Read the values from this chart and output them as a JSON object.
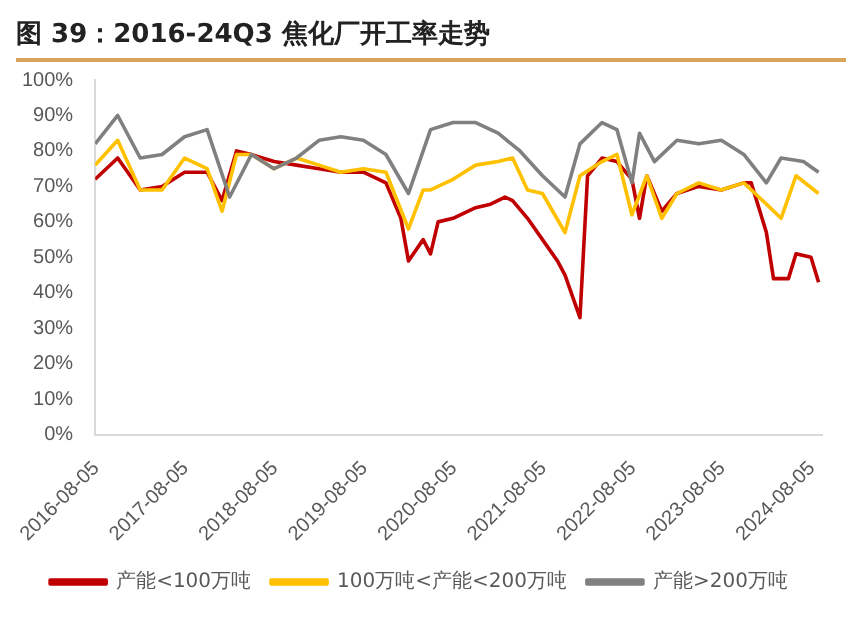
{
  "chart_data": {
    "type": "line",
    "title": "图 39：2016-24Q3 焦化厂开工率走势",
    "xlim": [
      "2016-08-01",
      "2024-09-15"
    ],
    "xticks": [
      "2016-08-05",
      "2017-08-05",
      "2018-08-05",
      "2019-08-05",
      "2020-08-05",
      "2021-08-05",
      "2022-08-05",
      "2023-08-05",
      "2024-08-05"
    ],
    "ylim": [
      0,
      100
    ],
    "yticks": [
      {
        "value": 0,
        "label": "0%"
      },
      {
        "value": 10,
        "label": "10%"
      },
      {
        "value": 20,
        "label": "20%"
      },
      {
        "value": 30,
        "label": "30%"
      },
      {
        "value": 40,
        "label": "40%"
      },
      {
        "value": 50,
        "label": "50%"
      },
      {
        "value": 60,
        "label": "60%"
      },
      {
        "value": 70,
        "label": "70%"
      },
      {
        "value": 80,
        "label": "80%"
      },
      {
        "value": 90,
        "label": "90%"
      },
      {
        "value": 100,
        "label": "100%"
      }
    ],
    "grid": false,
    "legend": "bottom",
    "marker": "none",
    "line_style": "solid",
    "series": [
      {
        "name": "产能<100万吨",
        "color": "#c00000",
        "x": [
          "2016-08",
          "2016-11",
          "2017-02",
          "2017-05",
          "2017-08",
          "2017-11",
          "2018-01",
          "2018-03",
          "2018-05",
          "2018-08",
          "2018-11",
          "2019-02",
          "2019-05",
          "2019-08",
          "2019-11",
          "2020-01",
          "2020-02",
          "2020-04",
          "2020-05",
          "2020-06",
          "2020-08",
          "2020-11",
          "2021-01",
          "2021-03",
          "2021-04",
          "2021-06",
          "2021-08",
          "2021-10",
          "2021-11",
          "2022-01",
          "2022-02",
          "2022-04",
          "2022-06",
          "2022-08",
          "2022-09",
          "2022-10",
          "2022-12",
          "2023-02",
          "2023-05",
          "2023-08",
          "2023-11",
          "2023-12",
          "2024-02",
          "2024-03",
          "2024-05",
          "2024-06",
          "2024-08",
          "2024-09"
        ],
        "values": [
          72,
          78,
          69,
          70,
          74,
          74,
          66,
          80,
          79,
          77,
          76,
          75,
          74,
          74,
          71,
          61,
          49,
          55,
          51,
          60,
          61,
          64,
          65,
          67,
          66,
          61,
          55,
          49,
          45,
          33,
          73,
          78,
          77,
          72,
          61,
          73,
          63,
          68,
          70,
          69,
          71,
          71,
          57,
          44,
          44,
          51,
          50,
          43
        ]
      },
      {
        "name": "100万吨<产能<200万吨",
        "color": "#ffc000",
        "x": [
          "2016-08",
          "2016-11",
          "2017-02",
          "2017-05",
          "2017-08",
          "2017-11",
          "2018-01",
          "2018-03",
          "2018-05",
          "2018-08",
          "2018-11",
          "2019-02",
          "2019-05",
          "2019-08",
          "2019-11",
          "2020-02",
          "2020-04",
          "2020-05",
          "2020-08",
          "2020-11",
          "2021-02",
          "2021-04",
          "2021-06",
          "2021-08",
          "2021-11",
          "2022-01",
          "2022-04",
          "2022-06",
          "2022-08",
          "2022-10",
          "2022-12",
          "2023-02",
          "2023-05",
          "2023-08",
          "2023-11",
          "2024-02",
          "2024-04",
          "2024-06",
          "2024-09"
        ],
        "values": [
          76,
          83,
          69,
          69,
          78,
          75,
          63,
          79,
          79,
          75,
          78,
          76,
          74,
          75,
          74,
          58,
          69,
          69,
          72,
          76,
          77,
          78,
          69,
          68,
          57,
          73,
          77,
          79,
          62,
          73,
          61,
          68,
          71,
          69,
          71,
          65,
          61,
          73,
          68
        ]
      },
      {
        "name": "产能>200万吨",
        "color": "#808080",
        "x": [
          "2016-08",
          "2016-11",
          "2017-02",
          "2017-05",
          "2017-08",
          "2017-11",
          "2018-02",
          "2018-05",
          "2018-08",
          "2018-11",
          "2019-02",
          "2019-05",
          "2019-08",
          "2019-11",
          "2020-02",
          "2020-05",
          "2020-08",
          "2020-11",
          "2021-02",
          "2021-05",
          "2021-08",
          "2021-11",
          "2022-01",
          "2022-04",
          "2022-06",
          "2022-08",
          "2022-09",
          "2022-11",
          "2023-02",
          "2023-05",
          "2023-08",
          "2023-11",
          "2024-02",
          "2024-04",
          "2024-07",
          "2024-09"
        ],
        "values": [
          82,
          90,
          78,
          79,
          84,
          86,
          67,
          79,
          75,
          78,
          83,
          84,
          83,
          79,
          68,
          86,
          88,
          88,
          85,
          80,
          73,
          67,
          82,
          88,
          86,
          71,
          85,
          77,
          83,
          82,
          83,
          79,
          71,
          78,
          77,
          74
        ]
      }
    ]
  }
}
